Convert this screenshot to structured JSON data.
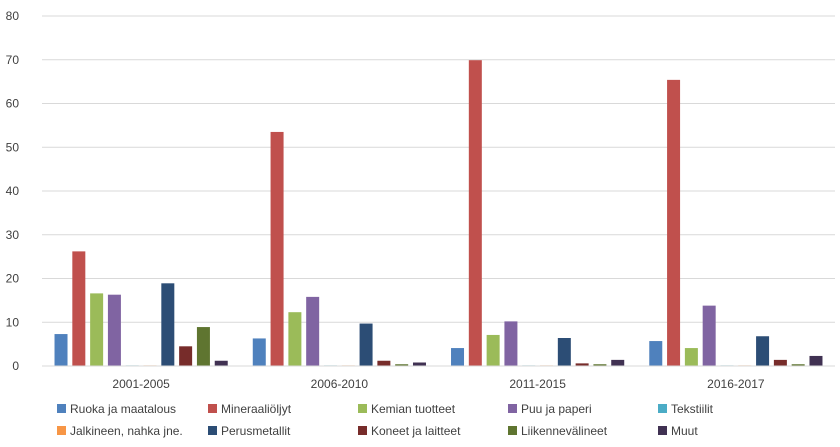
{
  "chart_data": {
    "type": "bar",
    "title": "",
    "xlabel": "",
    "ylabel": "",
    "ylim": [
      0,
      80
    ],
    "yticks": [
      0,
      10,
      20,
      30,
      40,
      50,
      60,
      70,
      80
    ],
    "grid": true,
    "legend_position": "bottom",
    "categories": [
      "2001-2005",
      "2006-2010",
      "2011-2015",
      "2016-2017"
    ],
    "series": [
      {
        "name": "Ruoka ja maatalous",
        "color": "#4f81bd",
        "values": [
          7.3,
          6.3,
          4.1,
          5.7
        ]
      },
      {
        "name": "Mineraaliöljyt",
        "color": "#c0504d",
        "values": [
          26.2,
          53.5,
          69.9,
          65.4
        ]
      },
      {
        "name": "Kemian tuotteet",
        "color": "#9bbb59",
        "values": [
          16.6,
          12.3,
          7.1,
          4.1
        ]
      },
      {
        "name": "Puu ja paperi",
        "color": "#8064a2",
        "values": [
          16.3,
          15.8,
          10.2,
          13.8
        ]
      },
      {
        "name": "Tekstiilit",
        "color": "#4bacc6",
        "values": [
          0.1,
          0.1,
          0.1,
          0.1
        ]
      },
      {
        "name": "Jalkineen, nahka jne.",
        "color": "#f79646",
        "values": [
          0.05,
          0.05,
          0.05,
          0.05
        ]
      },
      {
        "name": "Perusmetallit",
        "color": "#2c4d75",
        "values": [
          18.9,
          9.7,
          6.4,
          6.8
        ]
      },
      {
        "name": "Koneet ja laitteet",
        "color": "#772c2a",
        "values": [
          4.5,
          1.2,
          0.6,
          1.4
        ]
      },
      {
        "name": "Liikennevälineet",
        "color": "#5f7530",
        "values": [
          8.9,
          0.4,
          0.4,
          0.4
        ]
      },
      {
        "name": "Muut",
        "color": "#403152",
        "values": [
          1.2,
          0.8,
          1.4,
          2.3
        ]
      }
    ]
  }
}
